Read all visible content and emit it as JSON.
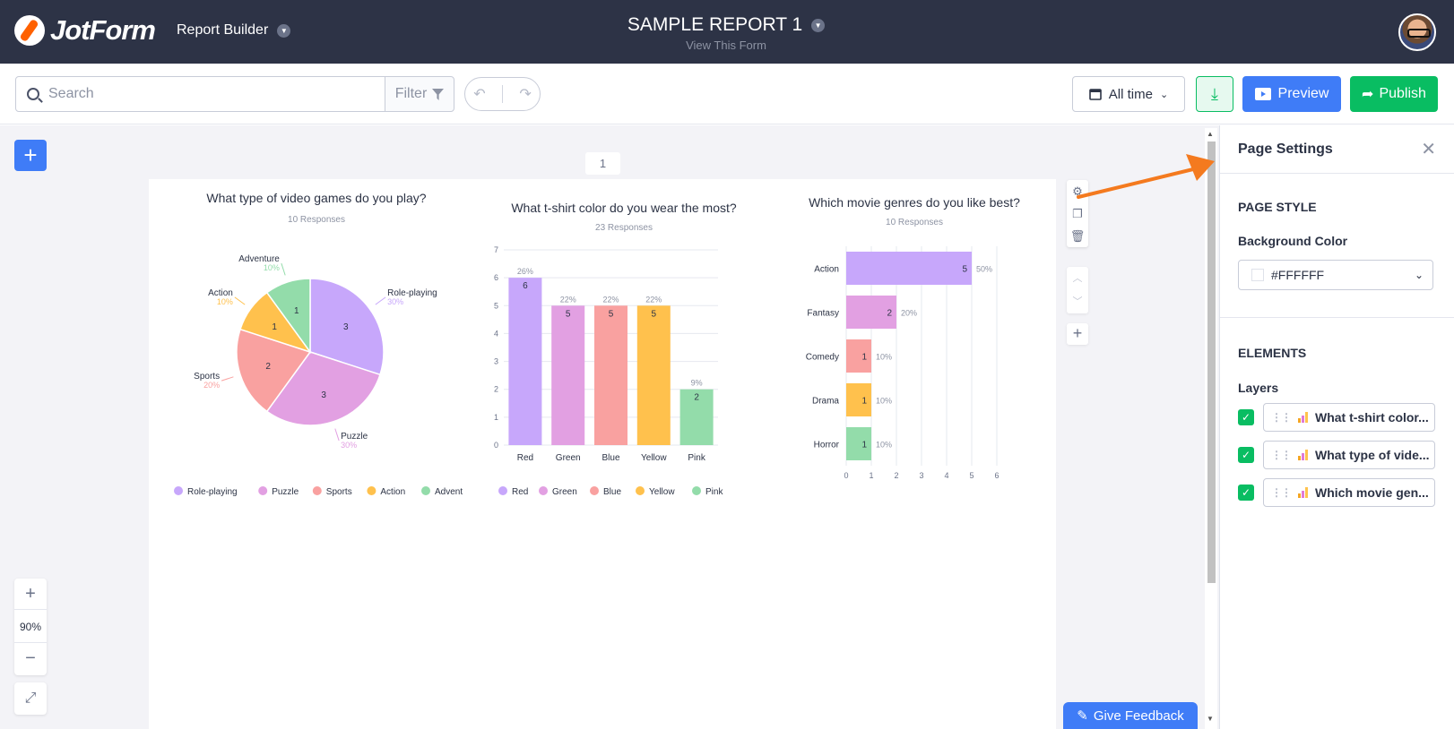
{
  "header": {
    "brand": "JotForm",
    "app_name": "Report Builder",
    "report_title": "SAMPLE REPORT 1",
    "report_subtitle": "View This Form"
  },
  "toolbar": {
    "search_placeholder": "Search",
    "filter_label": "Filter",
    "date_range": "All time",
    "preview_label": "Preview",
    "publish_label": "Publish"
  },
  "canvas": {
    "page_number": "1",
    "zoom_level": "90%",
    "feedback_label": "Give Feedback"
  },
  "panel": {
    "title": "Page Settings",
    "page_style_heading": "PAGE STYLE",
    "bg_color_label": "Background Color",
    "bg_color_value": "#FFFFFF",
    "elements_heading": "ELEMENTS",
    "layers_label": "Layers",
    "layers": [
      {
        "label": "What t-shirt color..."
      },
      {
        "label": "What type of vide..."
      },
      {
        "label": "Which movie gen..."
      }
    ]
  },
  "colors": {
    "purple": "#c7a7fb",
    "pink": "#e2a0e2",
    "salmon": "#f9a1a0",
    "yellow": "#ffc14d",
    "green": "#93dcaa"
  },
  "chart_data": [
    {
      "type": "pie",
      "title": "What type of video games do you play?",
      "subtitle": "10 Responses",
      "categories": [
        "Role-playing",
        "Puzzle",
        "Sports",
        "Action",
        "Adventure"
      ],
      "values": [
        3,
        3,
        2,
        1,
        1
      ],
      "percent_labels": [
        "30%",
        "30%",
        "20%",
        "10%",
        "10%"
      ],
      "colors": [
        "#c7a7fb",
        "#e2a0e2",
        "#f9a1a0",
        "#ffc14d",
        "#93dcaa"
      ],
      "legend": "bottom"
    },
    {
      "type": "bar",
      "title": "What t-shirt color do you wear the most?",
      "subtitle": "23 Responses",
      "categories": [
        "Red",
        "Green",
        "Blue",
        "Yellow",
        "Pink"
      ],
      "values": [
        6,
        5,
        5,
        5,
        2
      ],
      "percent_labels": [
        "26%",
        "22%",
        "22%",
        "22%",
        "9%"
      ],
      "colors": [
        "#c7a7fb",
        "#e2a0e2",
        "#f9a1a0",
        "#ffc14d",
        "#93dcaa"
      ],
      "yticks": [
        "0",
        "1",
        "2",
        "3",
        "4",
        "5",
        "6",
        "7"
      ],
      "ylim": [
        0,
        7
      ],
      "legend": "bottom"
    },
    {
      "type": "bar",
      "orientation": "horizontal",
      "title": "Which movie genres do you like best?",
      "subtitle": "10 Responses",
      "categories": [
        "Action",
        "Fantasy",
        "Comedy",
        "Drama",
        "Horror"
      ],
      "values": [
        5,
        2,
        1,
        1,
        1
      ],
      "percent_labels": [
        "50%",
        "20%",
        "10%",
        "10%",
        "10%"
      ],
      "colors": [
        "#c7a7fb",
        "#e2a0e2",
        "#f9a1a0",
        "#ffc14d",
        "#93dcaa"
      ],
      "xticks": [
        "0",
        "1",
        "2",
        "3",
        "4",
        "5",
        "6"
      ],
      "xlim": [
        0,
        6
      ]
    }
  ]
}
